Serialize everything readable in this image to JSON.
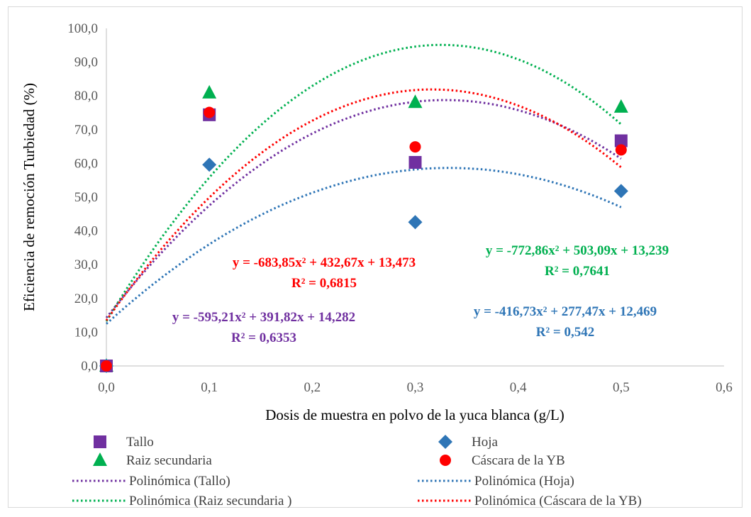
{
  "chart_data": {
    "type": "scatter",
    "xlabel": "Dosis de muestra en polvo de la yuca blanca (g/L)",
    "ylabel": "Eficiencia de remoción Turbiedad (%)",
    "xlim": [
      0,
      0.6
    ],
    "ylim": [
      0,
      100
    ],
    "x_ticks": [
      "0,0",
      "0,1",
      "0,2",
      "0,3",
      "0,4",
      "0,5",
      "0,6"
    ],
    "y_ticks": [
      "0,0",
      "10,0",
      "20,0",
      "30,0",
      "40,0",
      "50,0",
      "60,0",
      "70,0",
      "80,0",
      "90,0",
      "100,0"
    ],
    "grid": false,
    "legend_position": "bottom",
    "series": [
      {
        "name": "Tallo",
        "marker": "square",
        "color": "#7030a0",
        "x": [
          0,
          0.1,
          0.3,
          0.5
        ],
        "y": [
          0,
          74.4,
          60.3,
          66.7
        ],
        "trend": {
          "name": "Polinómica (Tallo)",
          "coef": [
            -595.21,
            391.82,
            14.282
          ],
          "equation": "y = -595,21x² + 391,82x + 14,282",
          "r2": "R² = 0,6353"
        }
      },
      {
        "name": "Hoja",
        "marker": "diamond",
        "color": "#2e75b6",
        "x": [
          0,
          0.1,
          0.3,
          0.5
        ],
        "y": [
          0,
          59.6,
          42.6,
          51.8
        ],
        "trend": {
          "name": "Polinómica (Hoja)",
          "coef": [
            -416.73,
            277.47,
            12.469
          ],
          "equation": "y = -416,73x² + 277,47x + 12,469",
          "r2": "R² = 0,542"
        }
      },
      {
        "name": "Raiz secundaria",
        "marker": "triangle",
        "color": "#00b050",
        "x": [
          0,
          0.1,
          0.3,
          0.5
        ],
        "y": [
          0,
          80.9,
          78.1,
          76.7
        ],
        "trend": {
          "name": "Polinómica (Raiz secundaria )",
          "coef": [
            -772.86,
            503.09,
            13.239
          ],
          "equation": "y = -772,86x² + 503,09x + 13,239",
          "r2": "R² = 0,7641"
        }
      },
      {
        "name": "Cáscara de la YB",
        "marker": "circle",
        "color": "#ff0000",
        "x": [
          0,
          0.1,
          0.3,
          0.5
        ],
        "y": [
          0,
          75.1,
          64.9,
          64.0
        ],
        "trend": {
          "name": "Polinómica (Cáscara de la YB)",
          "coef": [
            -683.85,
            432.67,
            13.473
          ],
          "equation": "y = -683,85x² + 432,67x + 13,473",
          "r2": "R² = 0,6815"
        }
      }
    ]
  }
}
